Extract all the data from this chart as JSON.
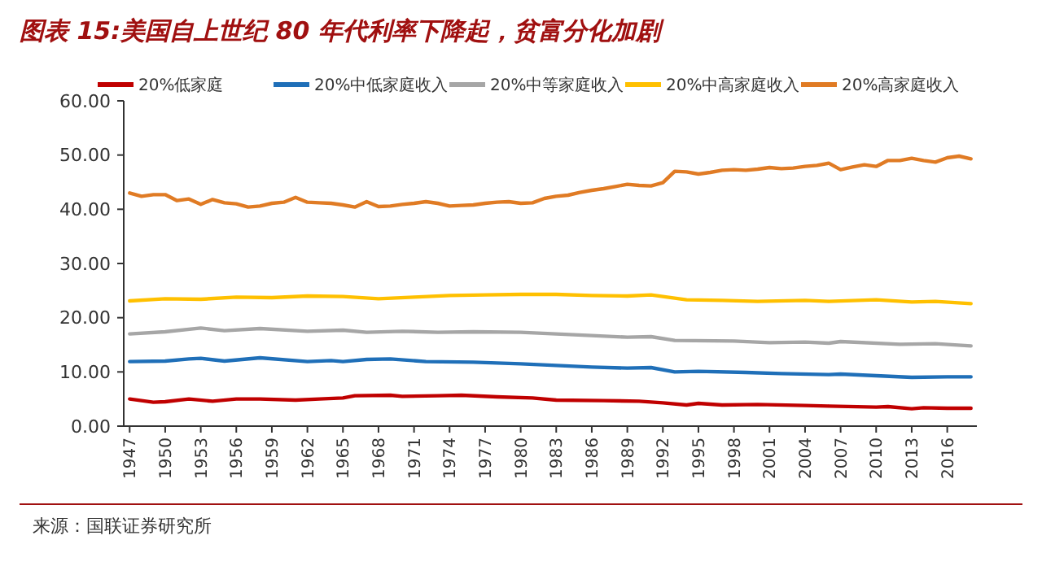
{
  "chart_data": {
    "type": "line",
    "title": "图表 15:美国自上世纪 80 年代利率下降起，贫富分化加剧",
    "annotations": [
      "来源：国联证券研究所"
    ],
    "xlim": [
      1946.5,
      2018.5
    ],
    "xticks": [
      1947,
      1950,
      1953,
      1956,
      1959,
      1962,
      1965,
      1968,
      1971,
      1974,
      1977,
      1980,
      1983,
      1986,
      1989,
      1992,
      1995,
      1998,
      2001,
      2004,
      2007,
      2010,
      2013,
      2016
    ],
    "ylim": [
      0,
      60
    ],
    "yticks": [
      {
        "value": 0,
        "label": "0.00"
      },
      {
        "value": 10,
        "label": "10.00"
      },
      {
        "value": 20,
        "label": "20.00"
      },
      {
        "value": 30,
        "label": "30.00"
      },
      {
        "value": 40,
        "label": "40.00"
      },
      {
        "value": 50,
        "label": "50.00"
      },
      {
        "value": 60,
        "label": "60.00"
      }
    ],
    "grid": false,
    "legend": "top",
    "marker": "none",
    "line_style": "solid",
    "series": [
      {
        "name": "20%低家庭",
        "color": "#c00000",
        "x": [
          1947,
          1949,
          1950,
          1952,
          1954,
          1956,
          1958,
          1961,
          1963,
          1965,
          1966,
          1969,
          1970,
          1973,
          1975,
          1978,
          1981,
          1983,
          1987,
          1990,
          1992,
          1994,
          1995,
          1997,
          2000,
          2004,
          2006,
          2010,
          2011,
          2013,
          2014,
          2016,
          2018
        ],
        "values": [
          5.0,
          4.4,
          4.5,
          5.0,
          4.6,
          5.0,
          5.0,
          4.8,
          5.0,
          5.2,
          5.6,
          5.7,
          5.5,
          5.6,
          5.7,
          5.4,
          5.2,
          4.8,
          4.7,
          4.6,
          4.3,
          3.9,
          4.2,
          3.9,
          4.0,
          3.8,
          3.7,
          3.5,
          3.6,
          3.2,
          3.4,
          3.3,
          3.3
        ]
      },
      {
        "name": "20%中低家庭收入",
        "color": "#1f6fb8",
        "x": [
          1947,
          1950,
          1952,
          1953,
          1955,
          1958,
          1962,
          1964,
          1965,
          1967,
          1969,
          1972,
          1976,
          1980,
          1983,
          1986,
          1989,
          1991,
          1993,
          1995,
          1999,
          2002,
          2006,
          2007,
          2010,
          2013,
          2016,
          2018
        ],
        "values": [
          11.9,
          12.0,
          12.4,
          12.5,
          12.0,
          12.6,
          11.9,
          12.1,
          11.9,
          12.3,
          12.4,
          11.9,
          11.8,
          11.5,
          11.2,
          10.9,
          10.7,
          10.8,
          10.0,
          10.1,
          9.9,
          9.7,
          9.5,
          9.6,
          9.3,
          9.0,
          9.1,
          9.1
        ]
      },
      {
        "name": "20%中等家庭收入",
        "color": "#a6a6a6",
        "x": [
          1947,
          1950,
          1953,
          1955,
          1958,
          1962,
          1965,
          1967,
          1970,
          1973,
          1976,
          1980,
          1983,
          1986,
          1989,
          1991,
          1993,
          1998,
          2001,
          2004,
          2006,
          2007,
          2012,
          2015,
          2018
        ],
        "values": [
          17.0,
          17.4,
          18.1,
          17.6,
          18.0,
          17.5,
          17.7,
          17.3,
          17.5,
          17.3,
          17.4,
          17.3,
          17.0,
          16.7,
          16.4,
          16.5,
          15.8,
          15.7,
          15.4,
          15.5,
          15.3,
          15.6,
          15.1,
          15.2,
          14.8
        ]
      },
      {
        "name": "20%中高家庭收入",
        "color": "#ffc000",
        "x": [
          1947,
          1950,
          1953,
          1956,
          1959,
          1962,
          1965,
          1968,
          1971,
          1974,
          1977,
          1980,
          1983,
          1986,
          1989,
          1991,
          1994,
          1997,
          2000,
          2004,
          2006,
          2010,
          2013,
          2015,
          2018
        ],
        "values": [
          23.1,
          23.5,
          23.4,
          23.8,
          23.7,
          24.0,
          23.9,
          23.5,
          23.8,
          24.1,
          24.2,
          24.3,
          24.3,
          24.1,
          24.0,
          24.2,
          23.3,
          23.2,
          23.0,
          23.2,
          23.0,
          23.3,
          22.9,
          23.0,
          22.6
        ]
      },
      {
        "name": "20%高家庭收入",
        "color": "#e07b24",
        "x": [
          1947,
          1948,
          1949,
          1950,
          1951,
          1952,
          1953,
          1954,
          1955,
          1956,
          1957,
          1958,
          1959,
          1960,
          1961,
          1962,
          1963,
          1964,
          1965,
          1966,
          1967,
          1968,
          1969,
          1970,
          1971,
          1972,
          1973,
          1974,
          1975,
          1976,
          1977,
          1978,
          1979,
          1980,
          1981,
          1982,
          1983,
          1984,
          1985,
          1986,
          1987,
          1988,
          1989,
          1990,
          1991,
          1992,
          1993,
          1994,
          1995,
          1996,
          1997,
          1998,
          1999,
          2000,
          2001,
          2002,
          2003,
          2004,
          2005,
          2006,
          2007,
          2008,
          2009,
          2010,
          2011,
          2012,
          2013,
          2014,
          2015,
          2016,
          2017,
          2018
        ],
        "values": [
          43.0,
          42.4,
          42.7,
          42.7,
          41.6,
          41.9,
          40.9,
          41.8,
          41.2,
          41.0,
          40.4,
          40.6,
          41.1,
          41.3,
          42.2,
          41.3,
          41.2,
          41.1,
          40.8,
          40.4,
          41.4,
          40.5,
          40.6,
          40.9,
          41.1,
          41.4,
          41.1,
          40.6,
          40.7,
          40.8,
          41.1,
          41.3,
          41.4,
          41.1,
          41.2,
          42.0,
          42.4,
          42.6,
          43.1,
          43.5,
          43.8,
          44.2,
          44.6,
          44.4,
          44.3,
          44.9,
          47.0,
          46.9,
          46.5,
          46.8,
          47.2,
          47.3,
          47.2,
          47.4,
          47.7,
          47.5,
          47.6,
          47.9,
          48.1,
          48.5,
          47.3,
          47.8,
          48.2,
          47.9,
          49.0,
          49.0,
          49.4,
          49.0,
          48.7,
          49.5,
          49.8,
          49.3
        ]
      }
    ]
  }
}
